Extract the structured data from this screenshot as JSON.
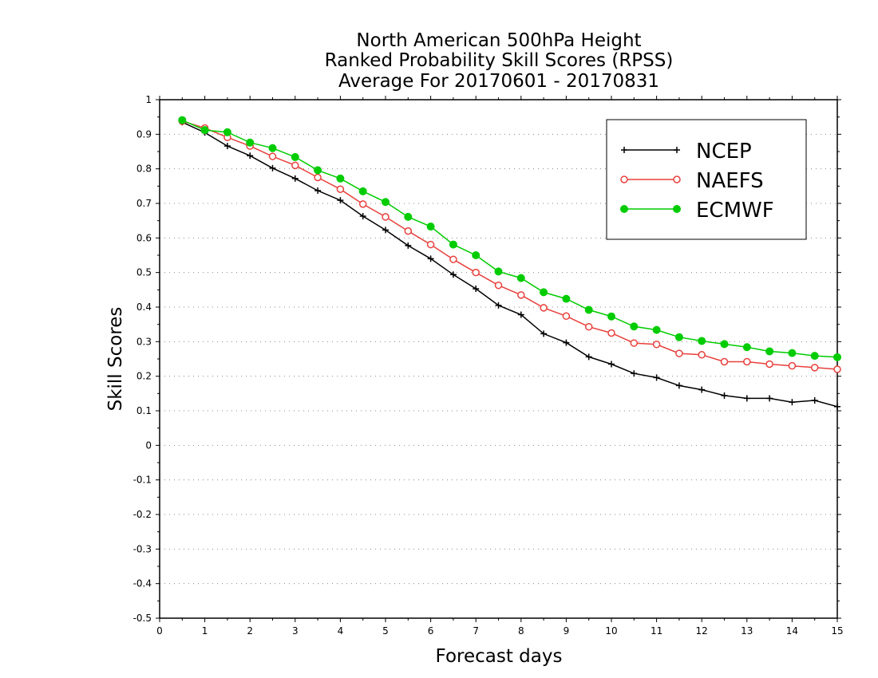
{
  "titles": [
    "North American 500hPa Height",
    "Ranked Probability Skill Scores (RPSS)",
    "Average For 20170601 - 20170831"
  ],
  "chart_data": {
    "type": "line",
    "title": "North American 500hPa Height / Ranked Probability Skill Scores (RPSS) / Average For 20170601 - 20170831",
    "xlabel": "Forecast days",
    "ylabel": "Skill Scores",
    "xlim": [
      0,
      15
    ],
    "ylim": [
      -0.5,
      1
    ],
    "xticks": [
      "0",
      "1",
      "2",
      "3",
      "4",
      "5",
      "6",
      "7",
      "8",
      "9",
      "10",
      "11",
      "12",
      "13",
      "14",
      "15"
    ],
    "yticks": [
      "-0.5",
      "-0.4",
      "-0.3",
      "-0.2",
      "-0.1",
      "0",
      "0.1",
      "0.2",
      "0.3",
      "0.4",
      "0.5",
      "0.6",
      "0.7",
      "0.8",
      "0.9",
      "1"
    ],
    "grid": "horizontal dotted",
    "legend_position": "top-right",
    "x": [
      0.5,
      1,
      1.5,
      2,
      2.5,
      3,
      3.5,
      4,
      4.5,
      5,
      5.5,
      6,
      6.5,
      7,
      7.5,
      8,
      8.5,
      9,
      9.5,
      10,
      10.5,
      11,
      11.5,
      12,
      12.5,
      13,
      13.5,
      14,
      14.5,
      15
    ],
    "series": [
      {
        "name": "NCEP",
        "color": "#000000",
        "marker": "plus",
        "values": [
          0.935,
          0.905,
          0.866,
          0.838,
          0.802,
          0.772,
          0.737,
          0.709,
          0.663,
          0.623,
          0.578,
          0.54,
          0.494,
          0.453,
          0.405,
          0.378,
          0.323,
          0.297,
          0.256,
          0.235,
          0.208,
          0.196,
          0.173,
          0.161,
          0.144,
          0.136,
          0.136,
          0.125,
          0.13,
          0.112
        ]
      },
      {
        "name": "NAEFS",
        "color": "#e8403c",
        "marker": "open-circle",
        "values": [
          0.938,
          0.918,
          0.891,
          0.866,
          0.836,
          0.81,
          0.775,
          0.741,
          0.698,
          0.661,
          0.62,
          0.581,
          0.538,
          0.5,
          0.463,
          0.435,
          0.398,
          0.374,
          0.343,
          0.325,
          0.296,
          0.292,
          0.266,
          0.262,
          0.242,
          0.242,
          0.235,
          0.23,
          0.225,
          0.22
        ]
      },
      {
        "name": "ECMWF",
        "color": "#00cc00",
        "marker": "filled-circle",
        "values": [
          0.941,
          0.912,
          0.906,
          0.876,
          0.86,
          0.834,
          0.796,
          0.772,
          0.735,
          0.704,
          0.661,
          0.633,
          0.581,
          0.55,
          0.503,
          0.484,
          0.443,
          0.424,
          0.392,
          0.373,
          0.344,
          0.334,
          0.313,
          0.302,
          0.293,
          0.284,
          0.272,
          0.267,
          0.259,
          0.255
        ]
      }
    ]
  }
}
